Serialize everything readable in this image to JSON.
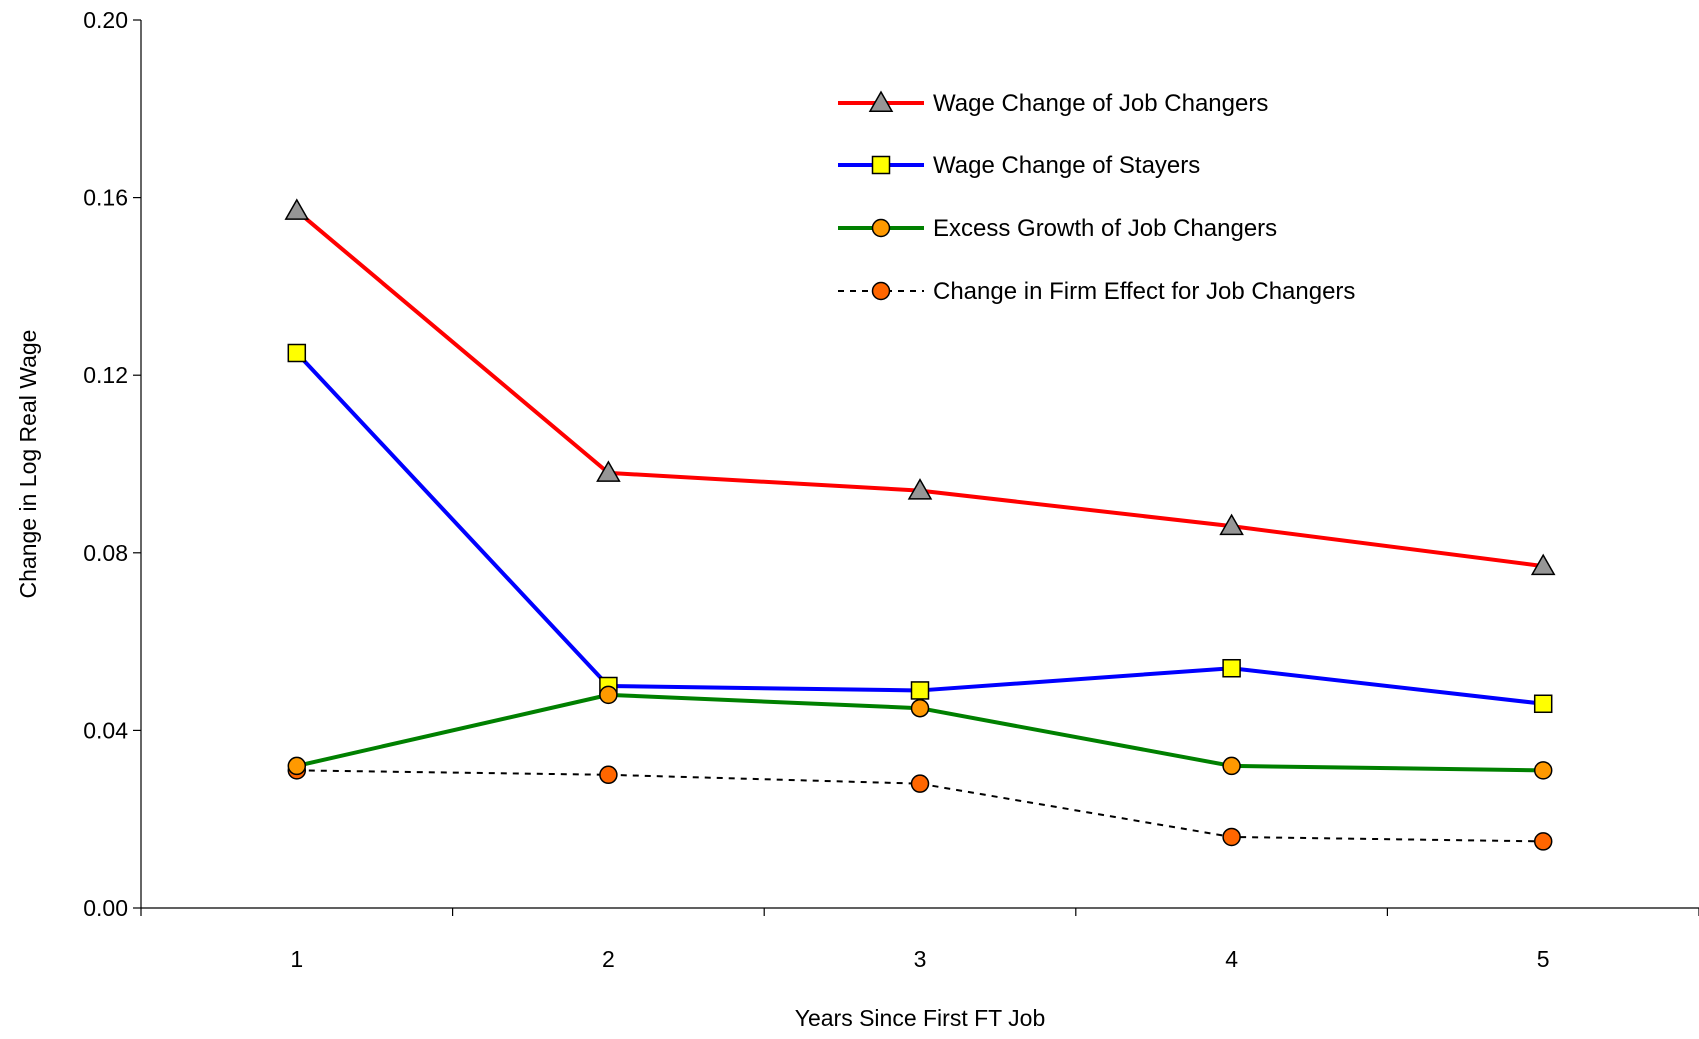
{
  "chart_data": {
    "type": "line",
    "xlabel": "Years Since First FT Job",
    "ylabel": "Change in Log Real Wage",
    "x": [
      1,
      2,
      3,
      4,
      5
    ],
    "x_tick_labels": [
      "1",
      "2",
      "3",
      "4",
      "5"
    ],
    "ylim": [
      0,
      0.2
    ],
    "y_ticks": [
      0,
      0.04,
      0.08,
      0.12,
      0.16,
      0.2
    ],
    "y_tick_labels": [
      "0.00",
      "0.04",
      "0.08",
      "0.12",
      "0.16",
      "0.20"
    ],
    "grid": false,
    "legend_position": "top-right inside plot",
    "series": [
      {
        "name": "Wage Change of Job Changers",
        "values": [
          0.157,
          0.098,
          0.094,
          0.086,
          0.077
        ],
        "line_color": "#ff0000",
        "line_style": "solid",
        "marker": "triangle",
        "marker_fill": "#969696"
      },
      {
        "name": "Wage Change of Stayers",
        "values": [
          0.125,
          0.05,
          0.049,
          0.054,
          0.046
        ],
        "line_color": "#0000ff",
        "line_style": "solid",
        "marker": "square",
        "marker_fill": "#ffff00"
      },
      {
        "name": "Excess Growth of Job Changers",
        "values": [
          0.032,
          0.048,
          0.045,
          0.032,
          0.031
        ],
        "line_color": "#008000",
        "line_style": "solid",
        "marker": "circle",
        "marker_fill": "#ff9900"
      },
      {
        "name": "Change in Firm Effect for Job Changers",
        "values": [
          0.031,
          0.03,
          0.028,
          0.016,
          0.015
        ],
        "line_color": "#000000",
        "line_style": "dotted",
        "marker": "circle",
        "marker_fill": "#ff6600"
      }
    ]
  }
}
